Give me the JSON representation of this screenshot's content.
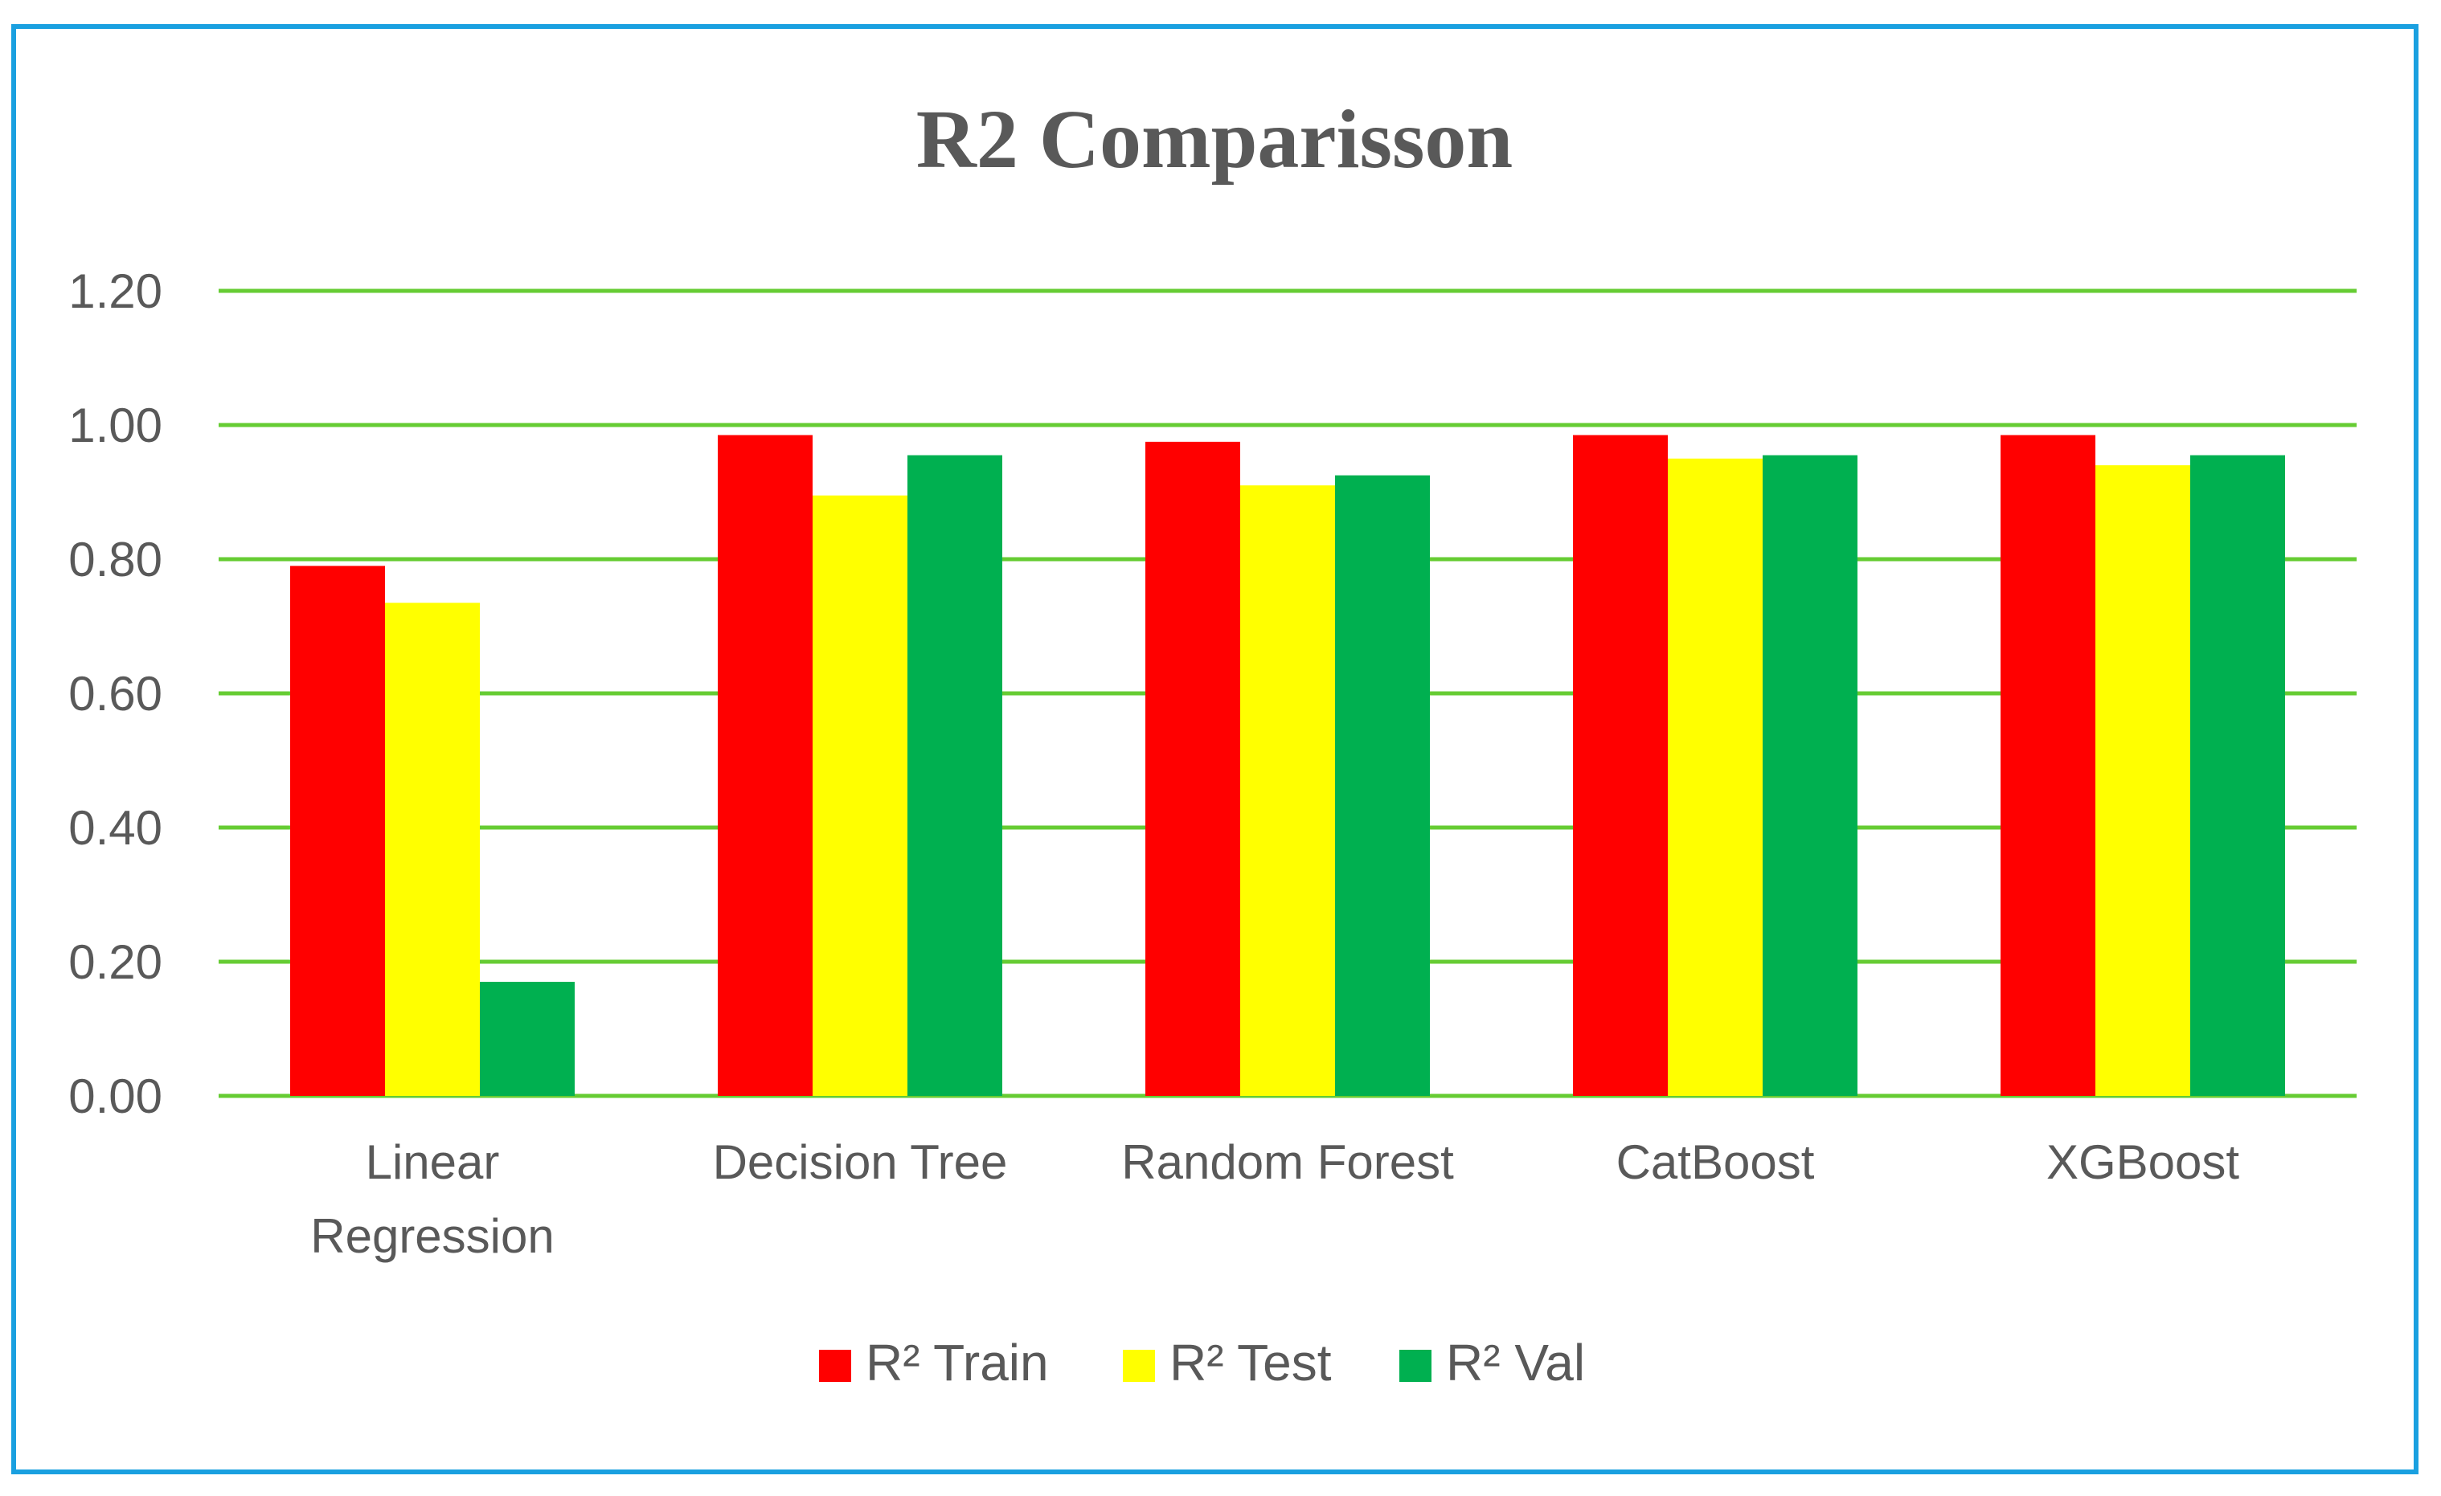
{
  "chart_data": {
    "type": "bar",
    "title": "R2 Comparisson",
    "xlabel": "",
    "ylabel": "",
    "ylim": [
      0,
      1.2
    ],
    "yticks": [
      "0.00",
      "0.20",
      "0.40",
      "0.60",
      "0.80",
      "1.00",
      "1.20"
    ],
    "ytick_values": [
      0,
      0.2,
      0.4,
      0.6,
      0.8,
      1.0,
      1.2
    ],
    "categories": [
      "Linear Regression",
      "Decision Tree",
      "Random Forest",
      "CatBoost",
      "XGBoost"
    ],
    "category_lines": [
      [
        "Linear",
        "Regression"
      ],
      [
        "Decision Tree"
      ],
      [
        "Random Forest"
      ],
      [
        "CatBoost"
      ],
      [
        "XGBoost"
      ]
    ],
    "series": [
      {
        "name": "R² Train",
        "color": "#ff0000",
        "values": [
          0.79,
          0.985,
          0.975,
          0.985,
          0.985
        ]
      },
      {
        "name": "R² Test",
        "color": "#ffff00",
        "values": [
          0.735,
          0.895,
          0.91,
          0.95,
          0.94
        ]
      },
      {
        "name": "R² Val",
        "color": "#00b050",
        "values": [
          0.17,
          0.955,
          0.925,
          0.955,
          0.955
        ]
      }
    ],
    "grid": true,
    "grid_color": "#66cc33",
    "legend": "bottom-center"
  },
  "frame_color": "#1aa0e0"
}
